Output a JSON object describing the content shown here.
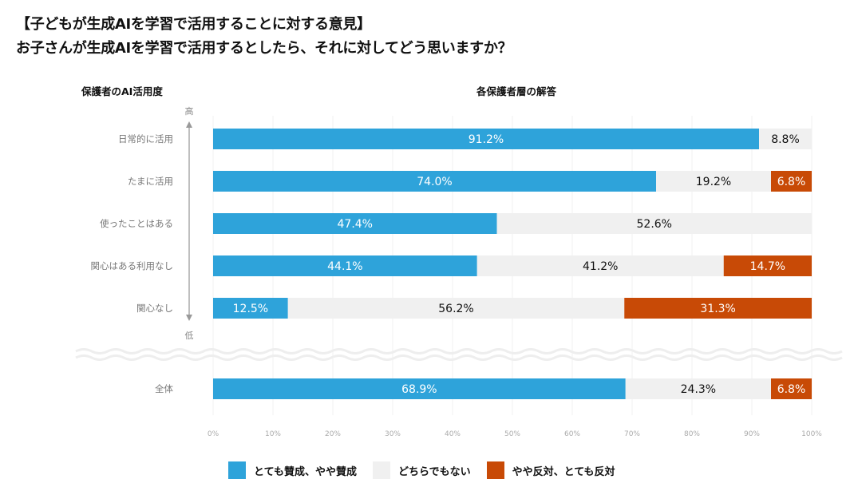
{
  "title_line1": "【子どもが生成AIを学習で活用することに対する意見】",
  "title_line2": "お子さんが生成AIを学習で活用するとしたら、それに対してどう思いますか？",
  "chart_data": {
    "type": "bar",
    "orientation": "horizontal-stacked-100",
    "row_axis_title": "保護者のAI活用度",
    "value_axis_title": "各保護者層の解答",
    "axis_high_label": "高",
    "axis_low_label": "低",
    "categories": [
      "日常的に活用",
      "たまに活用",
      "使ったことはある",
      "関心はある利用なし",
      "関心なし",
      "全体"
    ],
    "series": [
      {
        "name": "とても賛成、やや賛成",
        "color": "#2ea3da",
        "values": [
          91.2,
          74.0,
          47.4,
          44.1,
          12.5,
          68.9
        ],
        "labels": [
          "91.2%",
          "74.0%",
          "47.4%",
          "44.1%",
          "12.5%",
          "68.9%"
        ]
      },
      {
        "name": "どちらでもない",
        "color": "#f0f0f0",
        "values": [
          8.8,
          19.2,
          52.6,
          41.2,
          56.2,
          24.3
        ],
        "labels": [
          "8.8%",
          "19.2%",
          "52.6%",
          "41.2%",
          "56.2%",
          "24.3%"
        ]
      },
      {
        "name": "やや反対、とても反対",
        "color": "#c84a06",
        "values": [
          0,
          6.8,
          0,
          14.7,
          31.3,
          6.8
        ],
        "labels": [
          "",
          "6.8%",
          "",
          "14.7%",
          "31.3%",
          "6.8%"
        ]
      }
    ],
    "xlim": [
      0,
      100
    ],
    "xticks": [
      "0%",
      "10%",
      "20%",
      "30%",
      "40%",
      "50%",
      "60%",
      "70%",
      "80%",
      "90%",
      "100%"
    ],
    "grid": true,
    "legend": "bottom"
  }
}
